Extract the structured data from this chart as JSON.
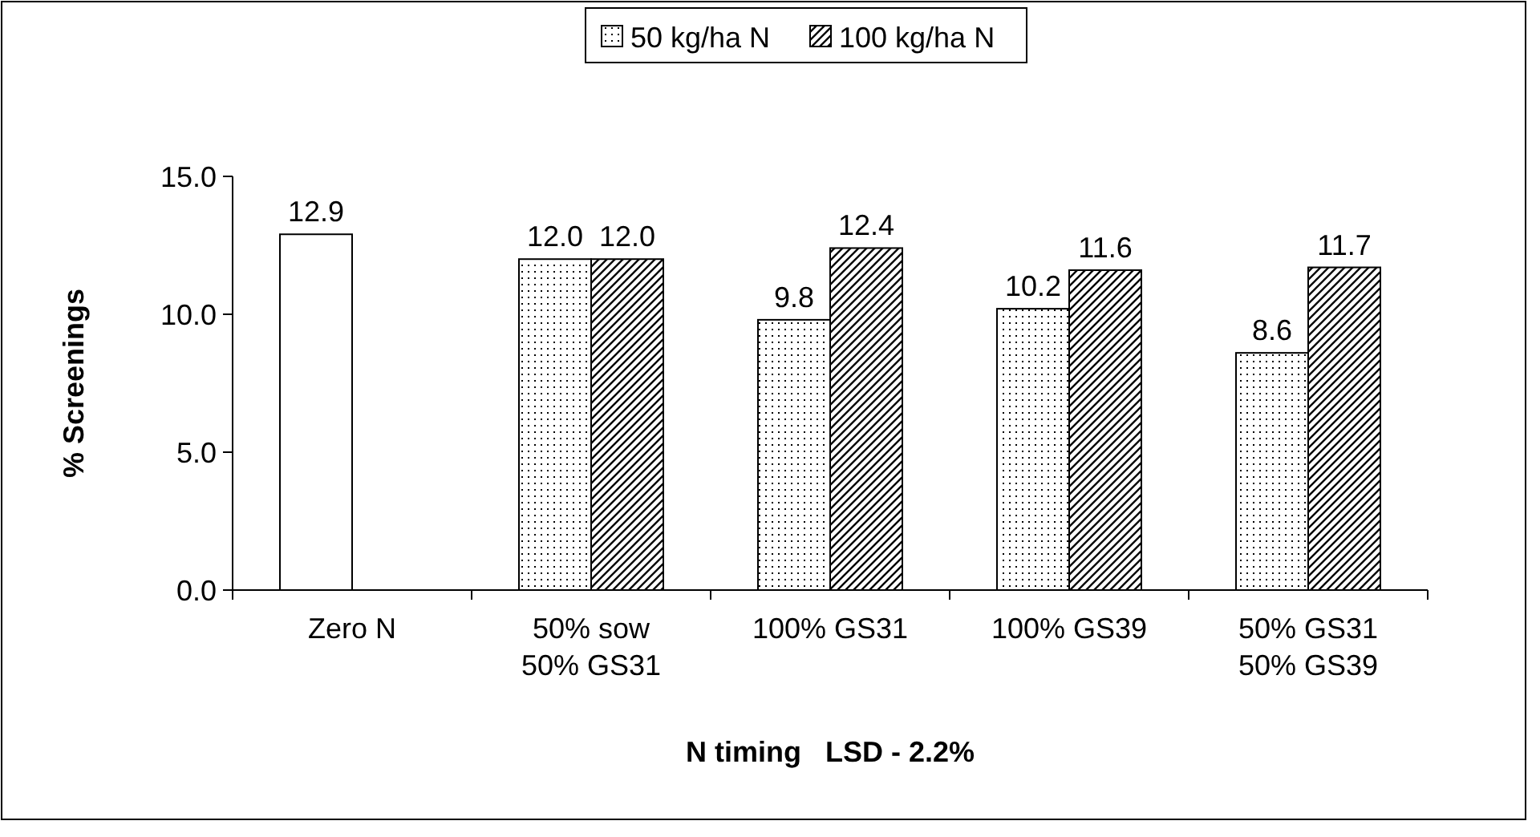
{
  "chart_data": {
    "type": "bar",
    "xlabel": "N timing   LSD - 2.2%",
    "ylabel": "% Screenings",
    "categories": [
      "Zero N",
      "50% sow\n50% GS31",
      "100% GS31",
      "100% GS39",
      "50% GS31\n50% GS39"
    ],
    "series": [
      {
        "color": "#ffffff",
        "values": [
          12.9,
          null,
          null,
          null,
          null
        ],
        "value_labels": [
          "12.9",
          null,
          null,
          null,
          null
        ]
      },
      {
        "name": "50 kg/ha N",
        "color": "#000000",
        "values": [
          null,
          12.0,
          9.8,
          10.2,
          8.6
        ],
        "value_labels": [
          null,
          "12.0",
          "9.8",
          "10.2",
          "8.6"
        ]
      },
      {
        "name": "100 kg/ha N",
        "color": "#000000",
        "values": [
          null,
          12.0,
          12.4,
          11.6,
          11.7
        ],
        "value_labels": [
          null,
          "12.0",
          "12.4",
          "11.6",
          "11.7"
        ]
      }
    ],
    "ylim": [
      0,
      15
    ],
    "yticks": [
      {
        "value": 0,
        "label": "0.0"
      },
      {
        "value": 5,
        "label": "5.0"
      },
      {
        "value": 10,
        "label": "10.0"
      },
      {
        "value": 15,
        "label": "15.0"
      }
    ],
    "legend": "top",
    "grid": false
  }
}
